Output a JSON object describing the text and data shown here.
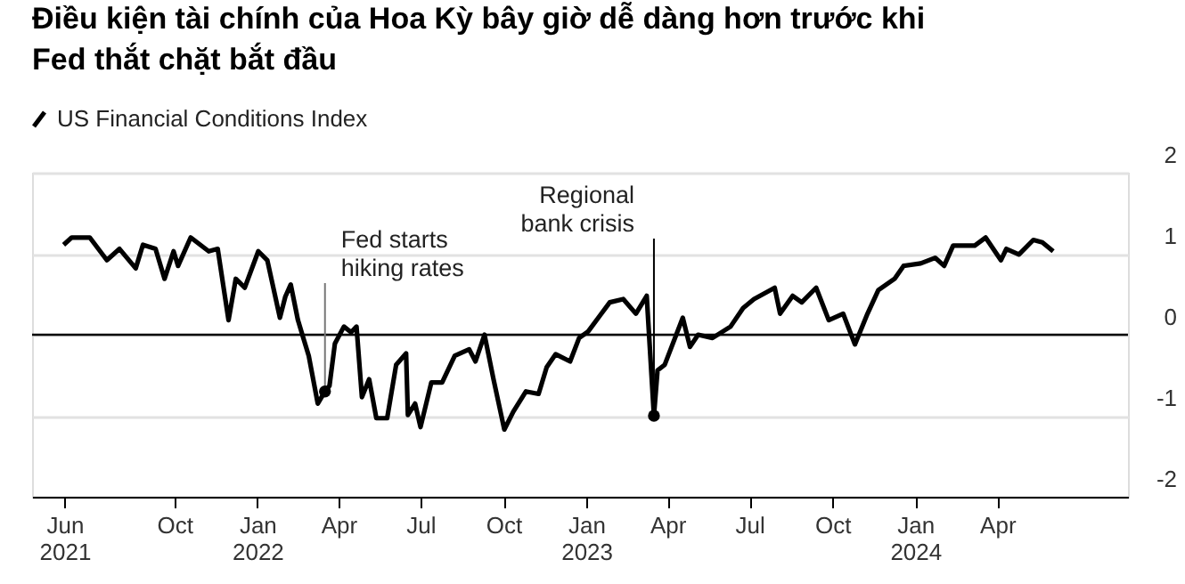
{
  "chart_data": {
    "type": "line",
    "title": "Điều kiện tài chính của Hoa Kỳ bây giờ dễ dàng hơn trước khi Fed thắt chặt bắt đầu",
    "x": [
      "2021-05-31",
      "2021-06-09",
      "2021-06-29",
      "2021-07-18",
      "2021-08-01",
      "2021-08-19",
      "2021-08-27",
      "2021-09-10",
      "2021-09-20",
      "2021-09-30",
      "2021-10-05",
      "2021-10-19",
      "2021-11-08",
      "2021-11-18",
      "2021-11-30",
      "2021-12-08",
      "2021-12-18",
      "2022-01-02",
      "2022-01-12",
      "2022-01-26",
      "2022-02-01",
      "2022-02-07",
      "2022-02-15",
      "2022-02-21",
      "2022-02-27",
      "2022-03-09",
      "2022-03-17",
      "2022-03-22",
      "2022-03-28",
      "2022-04-07",
      "2022-04-15",
      "2022-04-21",
      "2022-04-27",
      "2022-05-05",
      "2022-05-13",
      "2022-05-25",
      "2022-06-04",
      "2022-06-15",
      "2022-06-17",
      "2022-06-25",
      "2022-07-01",
      "2022-07-13",
      "2022-07-25",
      "2022-08-08",
      "2022-08-24",
      "2022-08-31",
      "2022-09-10",
      "2022-09-20",
      "2022-10-02",
      "2022-10-12",
      "2022-10-26",
      "2022-11-09",
      "2022-11-18",
      "2022-11-28",
      "2022-12-14",
      "2022-12-24",
      "2023-01-03",
      "2023-01-17",
      "2023-01-27",
      "2023-02-11",
      "2023-02-25",
      "2023-03-09",
      "2023-03-17",
      "2023-03-21",
      "2023-03-29",
      "2023-04-18",
      "2023-04-26",
      "2023-05-05",
      "2023-05-21",
      "2023-06-10",
      "2023-06-24",
      "2023-07-06",
      "2023-07-29",
      "2023-08-04",
      "2023-08-18",
      "2023-08-28",
      "2023-09-13",
      "2023-09-27",
      "2023-10-13",
      "2023-10-26",
      "2023-11-09",
      "2023-11-21",
      "2023-12-09",
      "2023-12-19",
      "2024-01-07",
      "2024-01-23",
      "2024-02-02",
      "2024-02-12",
      "2024-03-07",
      "2024-03-19",
      "2024-04-05",
      "2024-04-11",
      "2024-04-25",
      "2024-05-11",
      "2024-05-21",
      "2024-06-02"
    ],
    "series": [
      {
        "name": "US Financial Conditions Index",
        "color": "#000000",
        "values": [
          1.11,
          1.2,
          1.2,
          0.92,
          1.06,
          0.82,
          1.11,
          1.06,
          0.69,
          1.03,
          0.85,
          1.2,
          1.03,
          1.06,
          0.18,
          0.69,
          0.58,
          1.03,
          0.92,
          0.21,
          0.47,
          0.62,
          0.18,
          -0.04,
          -0.26,
          -0.85,
          -0.7,
          -0.63,
          -0.11,
          0.1,
          0.03,
          0.1,
          -0.77,
          -0.55,
          -1.03,
          -1.03,
          -0.37,
          -0.23,
          -0.99,
          -0.85,
          -1.14,
          -0.59,
          -0.59,
          -0.26,
          -0.18,
          -0.33,
          0.0,
          -0.55,
          -1.17,
          -0.95,
          -0.7,
          -0.73,
          -0.4,
          -0.24,
          -0.33,
          -0.04,
          0.04,
          0.25,
          0.4,
          0.44,
          0.26,
          0.48,
          -1.0,
          -0.44,
          -0.37,
          0.21,
          -0.15,
          0.0,
          -0.04,
          0.1,
          0.33,
          0.44,
          0.58,
          0.26,
          0.48,
          0.4,
          0.58,
          0.18,
          0.26,
          -0.12,
          0.26,
          0.55,
          0.69,
          0.85,
          0.88,
          0.95,
          0.85,
          1.1,
          1.1,
          1.2,
          0.92,
          1.06,
          0.99,
          1.17,
          1.14,
          1.03
        ]
      }
    ],
    "annotations": [
      {
        "text": "Fed starts hiking rates",
        "x": "2022-03-17",
        "y": -0.7
      },
      {
        "text": "Regional bank crisis",
        "x": "2023-03-17",
        "y": -1.0
      }
    ],
    "xlim": [
      "2021-04-26",
      "2024-08-24"
    ],
    "xticks": [
      {
        "value": "2021-06-01",
        "label": "Jun 2021"
      },
      {
        "value": "2021-10-01",
        "label": "Oct"
      },
      {
        "value": "2022-01-01",
        "label": "Jan 2022"
      },
      {
        "value": "2022-04-01",
        "label": "Apr"
      },
      {
        "value": "2022-07-01",
        "label": "Jul"
      },
      {
        "value": "2022-10-01",
        "label": "Oct"
      },
      {
        "value": "2023-01-01",
        "label": "Jan 2023"
      },
      {
        "value": "2023-04-01",
        "label": "Apr"
      },
      {
        "value": "2023-07-01",
        "label": "Jul"
      },
      {
        "value": "2023-10-01",
        "label": "Oct"
      },
      {
        "value": "2024-01-01",
        "label": "Jan 2024"
      },
      {
        "value": "2024-04-01",
        "label": "Apr"
      }
    ],
    "ylim": [
      -2,
      2
    ],
    "yticks": [
      -2,
      -1,
      0,
      1,
      2
    ],
    "ref_lines": [
      {
        "axis": "y",
        "value": 0,
        "color": "#000000"
      }
    ],
    "grid": "y",
    "legend": "top left",
    "marker": "none",
    "line_style": "solid"
  }
}
